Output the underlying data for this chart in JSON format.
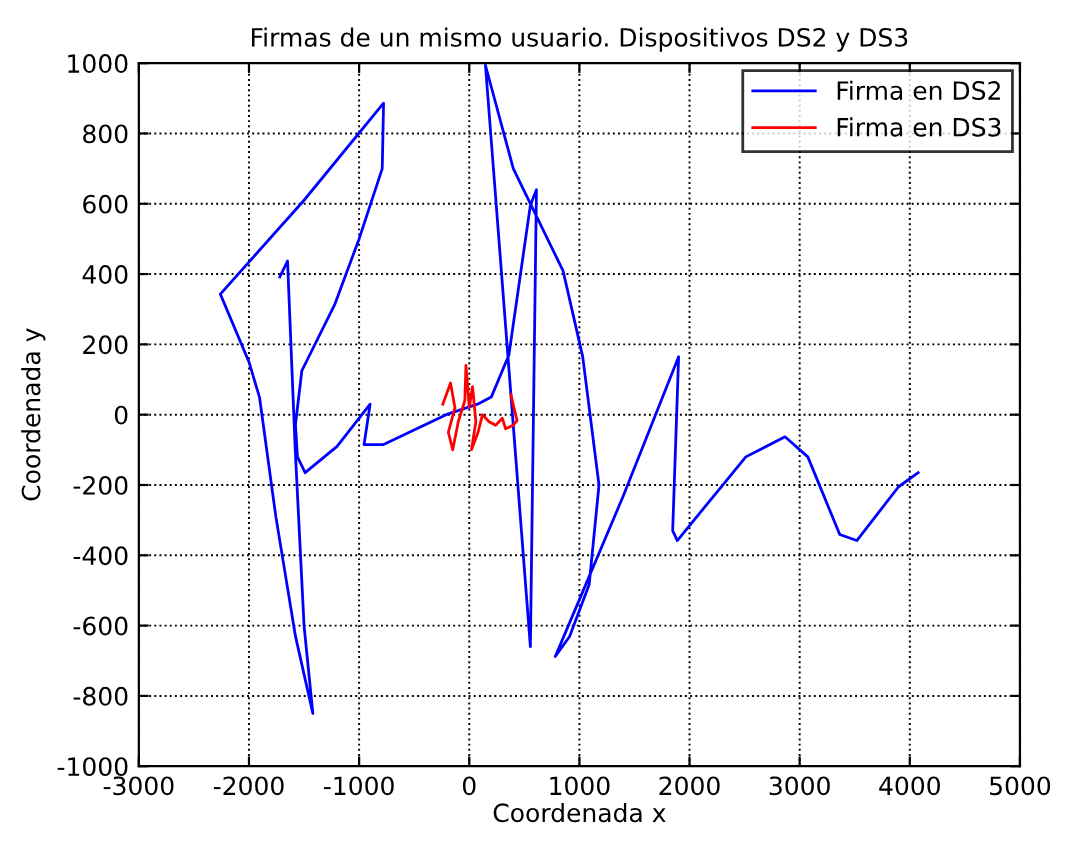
{
  "chart_data": {
    "type": "line",
    "title": "Firmas de un mismo usuario. Dispositivos DS2 y DS3",
    "xlabel": "Coordenada x",
    "ylabel": "Coordenada y",
    "xlim": [
      -3000,
      5000
    ],
    "ylim": [
      -1000,
      1000
    ],
    "xticks": [
      -3000,
      -2000,
      -1000,
      0,
      1000,
      2000,
      3000,
      4000,
      5000
    ],
    "yticks": [
      -1000,
      -800,
      -600,
      -400,
      -200,
      0,
      200,
      400,
      600,
      800,
      1000
    ],
    "grid": true,
    "legend": "top right",
    "line_style": "solid",
    "marker": "none",
    "series": [
      {
        "name": "Firma en DS2",
        "color": "#0000ff",
        "x": [
          -1720,
          -1650,
          -1580,
          -1500,
          -1420,
          -1578,
          -1756,
          -1904,
          -2000,
          -2260,
          -1500,
          -778,
          -790,
          -1000,
          -1222,
          -1520,
          -1578,
          -1560,
          -1490,
          -1200,
          -900,
          -955,
          -778,
          -210,
          75,
          200,
          360,
          555,
          610,
          555,
          147,
          400,
          852,
          1030,
          1178,
          1089,
          911,
          781,
          900,
          1400,
          1901,
          1847,
          1889,
          2333,
          2511,
          2867,
          3074,
          3364,
          3519,
          3898,
          4076
        ],
        "values": [
          392,
          437,
          -100,
          -600,
          -850,
          -630,
          -290,
          49,
          150,
          343,
          610,
          886,
          700,
          500,
          313,
          125,
          -28,
          -120,
          -165,
          -90,
          30,
          -85,
          -85,
          0,
          30,
          50,
          170,
          596,
          640,
          -660,
          994,
          700,
          409,
          165,
          -200,
          -483,
          -631,
          -688,
          -600,
          -230,
          165,
          -330,
          -358,
          -188,
          -120,
          -63,
          -120,
          -341,
          -358,
          -205,
          -165
        ]
      },
      {
        "name": "Firma en DS3",
        "color": "#ff0000",
        "x": [
          -240,
          -170,
          -130,
          -190,
          -150,
          -100,
          -40,
          -30,
          0,
          30,
          60,
          20,
          80,
          120,
          180,
          240,
          300,
          330,
          400,
          434,
          378
        ],
        "values": [
          30,
          90,
          20,
          -50,
          -100,
          -20,
          40,
          140,
          20,
          80,
          -20,
          -100,
          -50,
          0,
          -20,
          -30,
          -10,
          -40,
          -30,
          -17,
          57
        ]
      }
    ]
  }
}
